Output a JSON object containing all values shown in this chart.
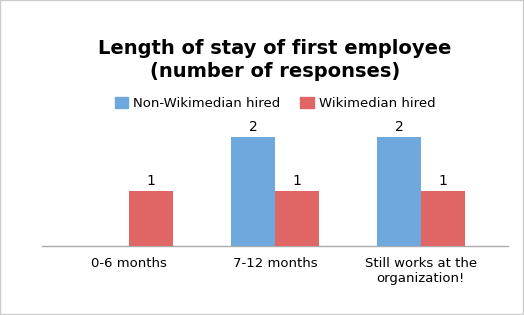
{
  "title": "Length of stay of first employee\n(number of responses)",
  "categories": [
    "0-6 months",
    "7-12 months",
    "Still works at the\norganization!"
  ],
  "non_wiki_values": [
    0,
    2,
    2
  ],
  "wiki_values": [
    1,
    1,
    1
  ],
  "non_wiki_color": "#6fa8dc",
  "wiki_color": "#e06666",
  "non_wiki_label": "Non-Wikimedian hired",
  "wiki_label": "Wikimedian hired",
  "ylim": [
    0,
    2.9
  ],
  "bar_width": 0.3,
  "title_fontsize": 14,
  "label_fontsize": 9.5,
  "legend_fontsize": 9.5,
  "value_fontsize": 10,
  "background_color": "#ffffff",
  "border_color": "#cccccc"
}
